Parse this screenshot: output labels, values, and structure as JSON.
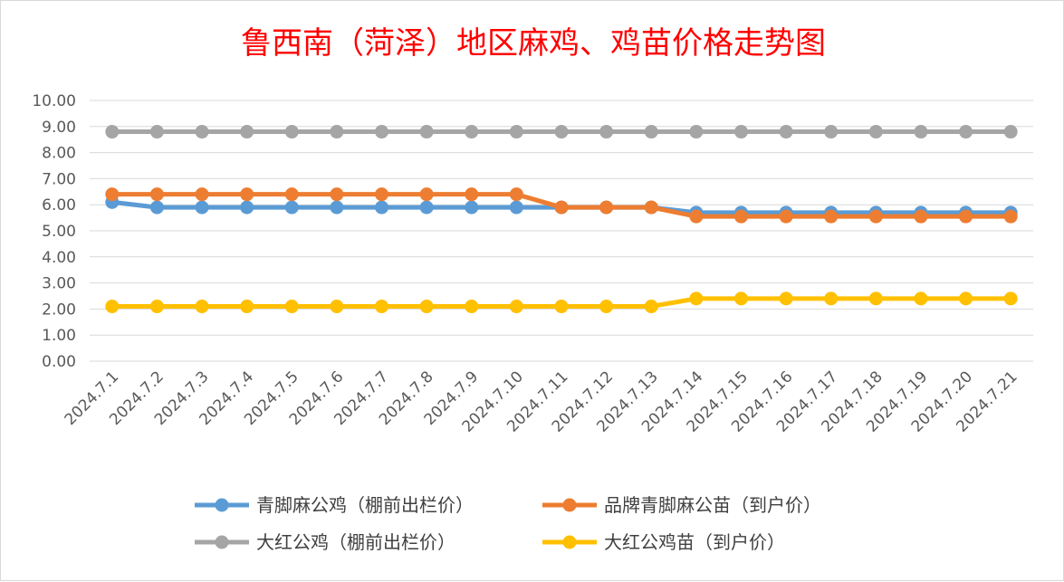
{
  "chart_data": {
    "type": "line",
    "title": "鲁西南（菏泽）地区麻鸡、鸡苗价格走势图",
    "xlabel": "",
    "ylabel": "",
    "ylim": [
      0,
      10
    ],
    "y_ticks": [
      "0.00",
      "1.00",
      "2.00",
      "3.00",
      "4.00",
      "5.00",
      "6.00",
      "7.00",
      "8.00",
      "9.00",
      "10.00"
    ],
    "grid": true,
    "legend_position": "bottom",
    "categories": [
      "2024.7.1",
      "2024.7.2",
      "2024.7.3",
      "2024.7.4",
      "2024.7.5",
      "2024.7.6",
      "2024.7.7",
      "2024.7.8",
      "2024.7.9",
      "2024.7.10",
      "2024.7.11",
      "2024.7.12",
      "2024.7.13",
      "2024.7.14",
      "2024.7.15",
      "2024.7.16",
      "2024.7.17",
      "2024.7.18",
      "2024.7.19",
      "2024.7.20",
      "2024.7.21"
    ],
    "series": [
      {
        "name": "青脚麻公鸡（棚前出栏价）",
        "color": "#5b9bd5",
        "values": [
          6.1,
          5.9,
          5.9,
          5.9,
          5.9,
          5.9,
          5.9,
          5.9,
          5.9,
          5.9,
          5.9,
          5.9,
          5.9,
          5.7,
          5.7,
          5.7,
          5.7,
          5.7,
          5.7,
          5.7,
          5.7
        ]
      },
      {
        "name": "品牌青脚麻公苗（到户价）",
        "color": "#ed7d31",
        "values": [
          6.4,
          6.4,
          6.4,
          6.4,
          6.4,
          6.4,
          6.4,
          6.4,
          6.4,
          6.4,
          5.9,
          5.9,
          5.9,
          5.55,
          5.55,
          5.55,
          5.55,
          5.55,
          5.55,
          5.55,
          5.55
        ]
      },
      {
        "name": "大红公鸡（棚前出栏价）",
        "color": "#a5a5a5",
        "values": [
          8.8,
          8.8,
          8.8,
          8.8,
          8.8,
          8.8,
          8.8,
          8.8,
          8.8,
          8.8,
          8.8,
          8.8,
          8.8,
          8.8,
          8.8,
          8.8,
          8.8,
          8.8,
          8.8,
          8.8,
          8.8
        ]
      },
      {
        "name": "大红公鸡苗（到户价）",
        "color": "#ffc000",
        "values": [
          2.1,
          2.1,
          2.1,
          2.1,
          2.1,
          2.1,
          2.1,
          2.1,
          2.1,
          2.1,
          2.1,
          2.1,
          2.1,
          2.4,
          2.4,
          2.4,
          2.4,
          2.4,
          2.4,
          2.4,
          2.4
        ]
      }
    ]
  }
}
